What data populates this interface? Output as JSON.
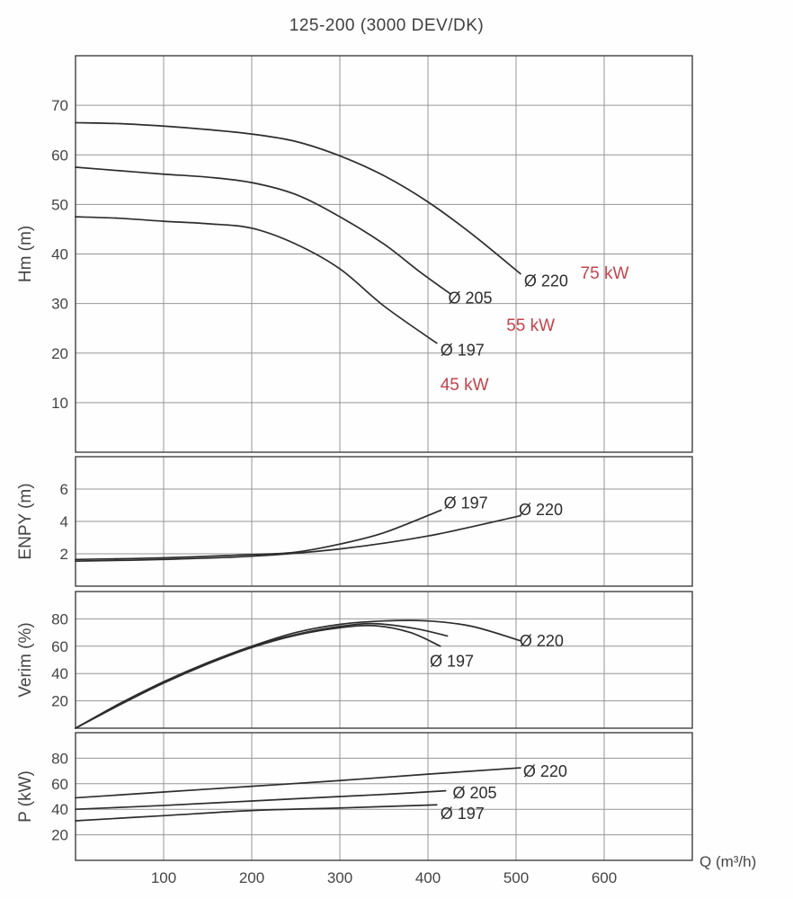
{
  "title": "125-200 (3000 DEV/DK)",
  "x_axis": {
    "label": "Q (m³/h)",
    "range": [
      0,
      700
    ],
    "ticks": [
      100,
      200,
      300,
      400,
      500,
      600
    ]
  },
  "colors": {
    "curve": "#2d2d2d",
    "grid": "#969696",
    "border": "#4c4c4c",
    "text": "#454545",
    "power_red": "#c2444c",
    "background": "#fefefe"
  },
  "chart_data": [
    {
      "id": "hm",
      "type": "line",
      "title": "125-200 (3000 DEV/DK)",
      "xlabel": "Q (m³/h)",
      "ylabel": "Hm (m)",
      "ylim": [
        0,
        80
      ],
      "yticks": [
        10,
        20,
        30,
        40,
        50,
        60,
        70
      ],
      "grid": true,
      "series": [
        {
          "name": "Ø 220",
          "points": [
            [
              0,
              66.5
            ],
            [
              50,
              66.3
            ],
            [
              100,
              65.8
            ],
            [
              150,
              65.1
            ],
            [
              200,
              64.2
            ],
            [
              250,
              62.7
            ],
            [
              300,
              59.8
            ],
            [
              350,
              55.8
            ],
            [
              400,
              50.5
            ],
            [
              450,
              44
            ],
            [
              505,
              36
            ]
          ]
        },
        {
          "name": "Ø 205",
          "points": [
            [
              0,
              57.5
            ],
            [
              50,
              56.8
            ],
            [
              100,
              56.1
            ],
            [
              150,
              55.5
            ],
            [
              200,
              54.4
            ],
            [
              250,
              52
            ],
            [
              300,
              47.5
            ],
            [
              350,
              42
            ],
            [
              390,
              36.5
            ],
            [
              425,
              32
            ]
          ]
        },
        {
          "name": "Ø 197",
          "points": [
            [
              0,
              47.5
            ],
            [
              50,
              47.2
            ],
            [
              100,
              46.6
            ],
            [
              150,
              46.1
            ],
            [
              200,
              45.2
            ],
            [
              250,
              42
            ],
            [
              300,
              37
            ],
            [
              350,
              29.5
            ],
            [
              410,
              22
            ]
          ]
        }
      ],
      "annotations": [
        {
          "text": "Ø 220",
          "q": 509,
          "v": 33.5,
          "color": "dark"
        },
        {
          "text": "75 kW",
          "q": 573,
          "v": 35,
          "color": "red"
        },
        {
          "text": "Ø 205",
          "q": 423,
          "v": 30,
          "color": "dark"
        },
        {
          "text": "55 kW",
          "q": 489,
          "v": 24.5,
          "color": "red"
        },
        {
          "text": "Ø 197",
          "q": 414,
          "v": 19.5,
          "color": "dark"
        },
        {
          "text": "45 kW",
          "q": 414,
          "v": 12.5,
          "color": "red"
        }
      ]
    },
    {
      "id": "enpy",
      "type": "line",
      "ylabel": "ENPY (m)",
      "ylim": [
        0,
        8
      ],
      "yticks": [
        2,
        4,
        6
      ],
      "grid": true,
      "series": [
        {
          "name": "Ø 197",
          "points": [
            [
              0,
              1.65
            ],
            [
              100,
              1.75
            ],
            [
              200,
              1.95
            ],
            [
              250,
              2.1
            ],
            [
              300,
              2.6
            ],
            [
              350,
              3.3
            ],
            [
              415,
              4.7
            ]
          ]
        },
        {
          "name": "Ø 220",
          "points": [
            [
              0,
              1.55
            ],
            [
              100,
              1.65
            ],
            [
              200,
              1.85
            ],
            [
              300,
              2.3
            ],
            [
              400,
              3.1
            ],
            [
              505,
              4.35
            ]
          ]
        }
      ],
      "annotations": [
        {
          "text": "Ø 197",
          "q": 418,
          "v": 4.8,
          "color": "dark"
        },
        {
          "text": "Ø 220",
          "q": 503,
          "v": 4.4,
          "color": "dark"
        }
      ]
    },
    {
      "id": "verim",
      "type": "line",
      "ylabel": "Verim (%)",
      "ylim": [
        0,
        100
      ],
      "yticks": [
        20,
        40,
        60,
        80
      ],
      "grid": true,
      "series": [
        {
          "name": "Ø 197",
          "points": [
            [
              0,
              0
            ],
            [
              50,
              17
            ],
            [
              100,
              33
            ],
            [
              150,
              47
            ],
            [
              200,
              59
            ],
            [
              250,
              68
            ],
            [
              300,
              73.5
            ],
            [
              340,
              75
            ],
            [
              380,
              70
            ],
            [
              414,
              60
            ]
          ]
        },
        {
          "name": "Ø 205",
          "points": [
            [
              0,
              0
            ],
            [
              50,
              17.5
            ],
            [
              100,
              33.5
            ],
            [
              150,
              47.5
            ],
            [
              200,
              59.5
            ],
            [
              250,
              68.5
            ],
            [
              300,
              74.5
            ],
            [
              340,
              76.5
            ],
            [
              385,
              73
            ],
            [
              422,
              67.5
            ]
          ]
        },
        {
          "name": "Ø 220",
          "points": [
            [
              0,
              0
            ],
            [
              50,
              18
            ],
            [
              100,
              34
            ],
            [
              150,
              48
            ],
            [
              200,
              60
            ],
            [
              250,
              70
            ],
            [
              300,
              76
            ],
            [
              350,
              78.5
            ],
            [
              400,
              78.5
            ],
            [
              450,
              74.5
            ],
            [
              505,
              64
            ]
          ]
        }
      ],
      "annotations": [
        {
          "text": "Ø 197",
          "q": 402,
          "v": 45,
          "color": "dark"
        },
        {
          "text": "Ø 220",
          "q": 504,
          "v": 60,
          "color": "dark"
        }
      ]
    },
    {
      "id": "p",
      "type": "line",
      "ylabel": "P (kW)",
      "ylim": [
        0,
        100
      ],
      "yticks": [
        20,
        40,
        60,
        80
      ],
      "grid": true,
      "series": [
        {
          "name": "Ø 220",
          "points": [
            [
              0,
              49
            ],
            [
              100,
              53.5
            ],
            [
              200,
              58
            ],
            [
              300,
              62.5
            ],
            [
              400,
              67.5
            ],
            [
              505,
              72.5
            ]
          ]
        },
        {
          "name": "Ø 205",
          "points": [
            [
              0,
              40
            ],
            [
              100,
              43
            ],
            [
              200,
              46.5
            ],
            [
              300,
              50
            ],
            [
              360,
              52
            ],
            [
              420,
              54.5
            ]
          ]
        },
        {
          "name": "Ø 197",
          "points": [
            [
              0,
              31
            ],
            [
              100,
              35
            ],
            [
              200,
              39
            ],
            [
              300,
              41
            ],
            [
              410,
              43.5
            ]
          ]
        }
      ],
      "annotations": [
        {
          "text": "Ø 220",
          "q": 508,
          "v": 65.5,
          "color": "dark"
        },
        {
          "text": "Ø 205",
          "q": 428,
          "v": 48.5,
          "color": "dark"
        },
        {
          "text": "Ø 197",
          "q": 414,
          "v": 32.5,
          "color": "dark"
        }
      ]
    }
  ]
}
